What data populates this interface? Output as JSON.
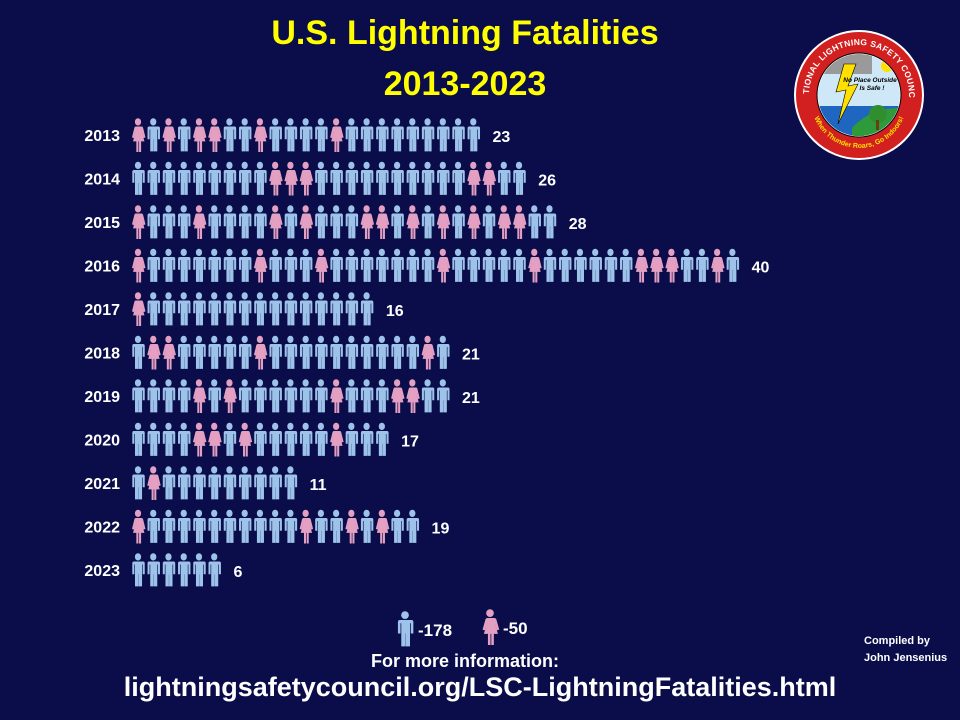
{
  "title_line1": "U.S. Lightning Fatalities",
  "title_line2": "2013-2023",
  "colors": {
    "background": "#0a0d4a",
    "title": "#ffff00",
    "male": "#9ec3ea",
    "female": "#e3a0c2"
  },
  "logo": {
    "ring_text": "NATIONAL LIGHTNING SAFETY COUNCIL",
    "ring_text_bottom": "When Thunder Roars, Go Indoors!",
    "center_line1": "No Place Outside",
    "center_line2": "Is Safe !"
  },
  "chart_data": {
    "type": "pictograph",
    "categories": [
      "2013",
      "2014",
      "2015",
      "2016",
      "2017",
      "2018",
      "2019",
      "2020",
      "2021",
      "2022",
      "2023"
    ],
    "values": [
      23,
      26,
      28,
      40,
      16,
      21,
      21,
      17,
      11,
      19,
      6
    ],
    "value_labels": [
      "23",
      "26",
      "28",
      "40",
      "16",
      "21",
      "21",
      "17",
      "11",
      "19",
      "6"
    ],
    "female_positions": [
      [
        0,
        2,
        4,
        5,
        8,
        13
      ],
      [
        9,
        10,
        11,
        22,
        23
      ],
      [
        0,
        4,
        9,
        11,
        15,
        16,
        18,
        20,
        22,
        24,
        25
      ],
      [
        0,
        8,
        12,
        20,
        26,
        33,
        34,
        35,
        38
      ],
      [
        0
      ],
      [
        1,
        2,
        8,
        19
      ],
      [
        4,
        6,
        13,
        17,
        18
      ],
      [
        4,
        5,
        7,
        13
      ],
      [
        1
      ],
      [
        0,
        11,
        14,
        16
      ],
      []
    ],
    "legend": [
      {
        "icon": "male-figure-icon",
        "label": "-178"
      },
      {
        "icon": "female-figure-icon",
        "label": "-50"
      }
    ]
  },
  "footer": {
    "info": "For more information:",
    "url": "lightningsafetycouncil.org/LSC-LightningFatalities.html"
  },
  "credit": {
    "line1": "Compiled by",
    "line2": "John Jensenius"
  }
}
